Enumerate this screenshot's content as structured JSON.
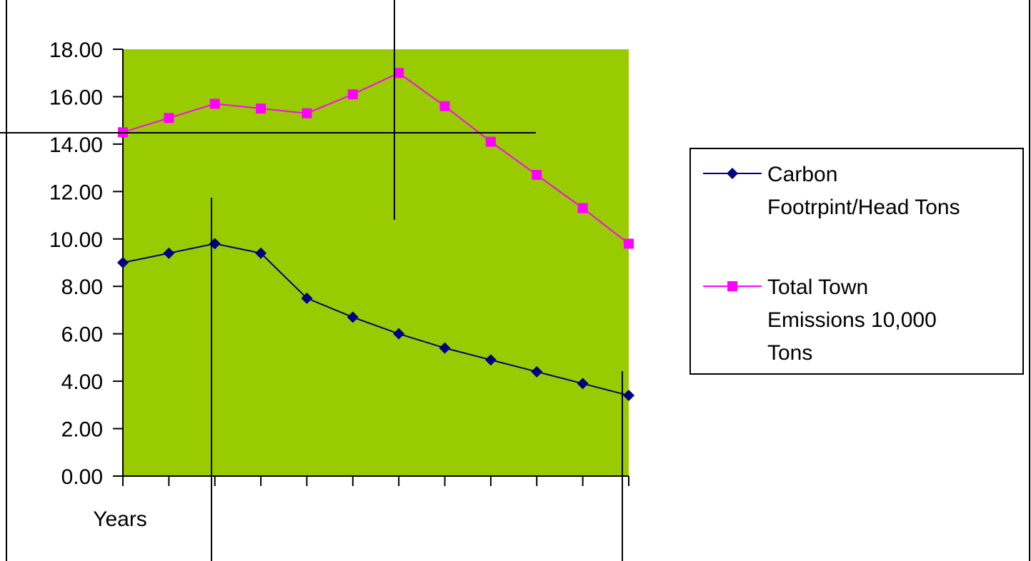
{
  "chart_data": {
    "type": "line",
    "xlabel": "Years",
    "ylim": [
      0,
      18
    ],
    "yticks": [
      "0.00",
      "2.00",
      "4.00",
      "6.00",
      "8.00",
      "10.00",
      "12.00",
      "14.00",
      "16.00",
      "18.00"
    ],
    "x": [
      1,
      2,
      3,
      4,
      5,
      6,
      7,
      8,
      9,
      10,
      11,
      12
    ],
    "series": [
      {
        "name": "Carbon Footrpint/Head Tons",
        "legend_lines": [
          "Carbon",
          "Footrpint/Head Tons"
        ],
        "marker": "diamond",
        "color": "#000080",
        "values": [
          9.0,
          9.4,
          9.8,
          9.4,
          7.5,
          6.7,
          6.0,
          5.4,
          4.9,
          4.4,
          3.9,
          3.4
        ]
      },
      {
        "name": "Total Town Emissions 10,000 Tons",
        "legend_lines": [
          "Total Town",
          "Emissions 10,000",
          "Tons"
        ],
        "marker": "square",
        "color": "#FF00FF",
        "values": [
          14.5,
          15.1,
          15.7,
          15.5,
          15.3,
          16.1,
          17.0,
          15.6,
          14.1,
          12.7,
          11.3,
          9.8
        ]
      }
    ],
    "grid": false,
    "legend_position": "right",
    "plot_background": "#99CC00"
  }
}
